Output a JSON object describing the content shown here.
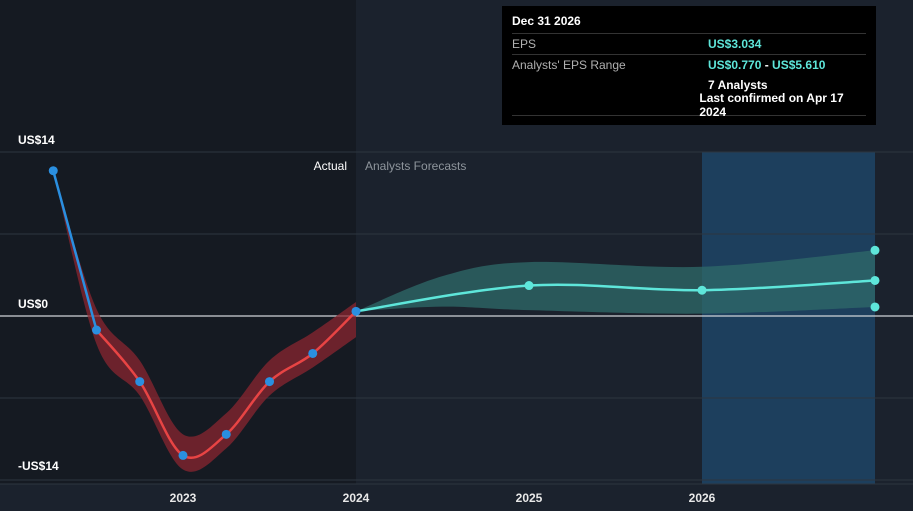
{
  "chart_data": {
    "type": "line",
    "y_unit_labels": {
      "top": "US$14",
      "zero": "US$0",
      "bottom": "-US$14"
    },
    "ylim": [
      -14,
      14
    ],
    "xlim": [
      2022.2,
      2027.2
    ],
    "x_ticks": [
      {
        "value": 2023,
        "label": "2023"
      },
      {
        "value": 2024,
        "label": "2024"
      },
      {
        "value": 2025,
        "label": "2025"
      },
      {
        "value": 2026,
        "label": "2026"
      }
    ],
    "section_labels": {
      "actual": "Actual",
      "forecast": "Analysts Forecasts"
    },
    "series": [
      {
        "role": "actual",
        "points": [
          {
            "x": 2022.25,
            "y": 12.4
          },
          {
            "x": 2022.5,
            "y": -1.2
          },
          {
            "x": 2022.75,
            "y": -5.6
          },
          {
            "x": 2023.0,
            "y": -11.9
          },
          {
            "x": 2023.25,
            "y": -10.1
          },
          {
            "x": 2023.5,
            "y": -5.6
          },
          {
            "x": 2023.75,
            "y": -3.2
          },
          {
            "x": 2024.0,
            "y": 0.4
          }
        ]
      },
      {
        "role": "forecast",
        "points": [
          {
            "x": 2024.0,
            "y": 0.4
          },
          {
            "x": 2025.0,
            "y": 2.6
          },
          {
            "x": 2026.0,
            "y": 2.2
          },
          {
            "x": 2027.0,
            "y": 3.034
          }
        ],
        "range_high": [
          {
            "x": 2024.0,
            "y": 0.4
          },
          {
            "x": 2024.5,
            "y": 3.4
          },
          {
            "x": 2025.0,
            "y": 4.6
          },
          {
            "x": 2026.0,
            "y": 4.2
          },
          {
            "x": 2027.0,
            "y": 5.61
          }
        ],
        "range_low": [
          {
            "x": 2024.0,
            "y": 0.4
          },
          {
            "x": 2024.5,
            "y": 0.8
          },
          {
            "x": 2025.0,
            "y": 0.5
          },
          {
            "x": 2026.0,
            "y": 0.2
          },
          {
            "x": 2027.0,
            "y": 0.77
          }
        ]
      }
    ],
    "colors": {
      "background": "#1b222d",
      "actual_shade": "#151a22",
      "grid": "#2d3540",
      "zero_line": "#d0d4d8",
      "actual_down": "#e84444",
      "actual_up": "#2a8fe0",
      "actual_band": "#8a2530",
      "forecast_line": "#5ee6da",
      "forecast_band": "#2f6b6a",
      "highlight": "#1f4a6e",
      "point_blue": "#2a8fe0",
      "point_teal": "#5ee6da"
    }
  },
  "tooltip": {
    "date": "Dec 31 2026",
    "eps_label": "EPS",
    "eps_value": "US$3.034",
    "range_label": "Analysts' EPS Range",
    "range_low": "US$0.770",
    "range_sep": " - ",
    "range_high": "US$5.610",
    "analysts": "7 Analysts",
    "confirmed": "Last confirmed on Apr 17 2024"
  }
}
